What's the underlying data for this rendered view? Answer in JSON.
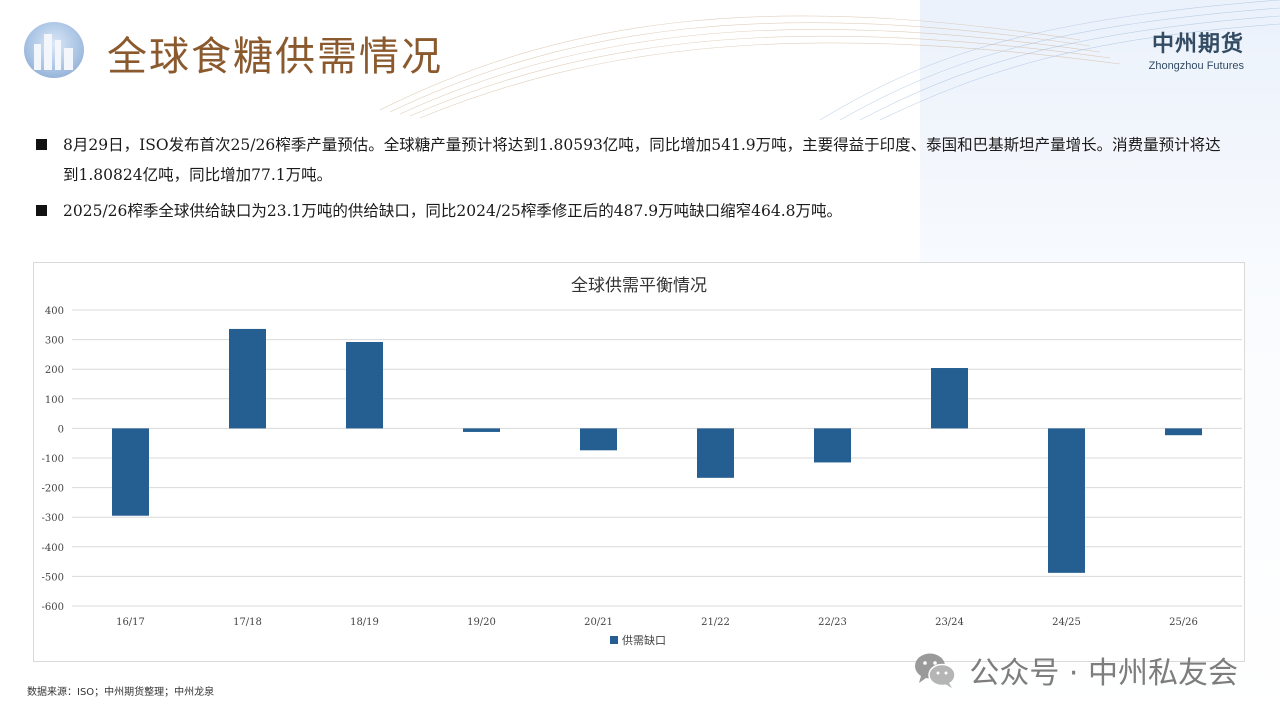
{
  "page": {
    "title": "全球食糖供需情况",
    "brand_cn": "中州期货",
    "brand_en": "Zhongzhou Futures"
  },
  "bullets": [
    "8月29日，ISO发布首次25/26榨季产量预估。全球糖产量预计将达到1.80593亿吨，同比增加541.9万吨，主要得益于印度、泰国和巴基斯坦产量增长。消费量预计将达到1.80824亿吨，同比增加77.1万吨。",
    "2025/26榨季全球供给缺口为23.1万吨的供给缺口，同比2024/25榨季修正后的487.9万吨缺口缩窄464.8万吨。"
  ],
  "footer": {
    "source": "数据来源：ISO；中州期货整理；中州龙泉",
    "watermark": "公众号 · 中州私友会"
  },
  "colors": {
    "bar": "#255e91",
    "title": "#8a5a2e"
  },
  "chart_data": {
    "type": "bar",
    "title": "全球供需平衡情况",
    "categories": [
      "16/17",
      "17/18",
      "18/19",
      "19/20",
      "20/21",
      "21/22",
      "22/23",
      "23/24",
      "24/25",
      "25/26"
    ],
    "series": [
      {
        "name": "供需缺口",
        "values": [
          -295,
          336,
          292,
          -12,
          -74,
          -167,
          -115,
          204,
          -488,
          -23
        ]
      }
    ],
    "ylim": [
      -600,
      400
    ],
    "yticks": [
      400,
      300,
      200,
      100,
      0,
      -100,
      -200,
      -300,
      -400,
      -500,
      -600
    ],
    "grid": true,
    "legend": "bottom"
  }
}
